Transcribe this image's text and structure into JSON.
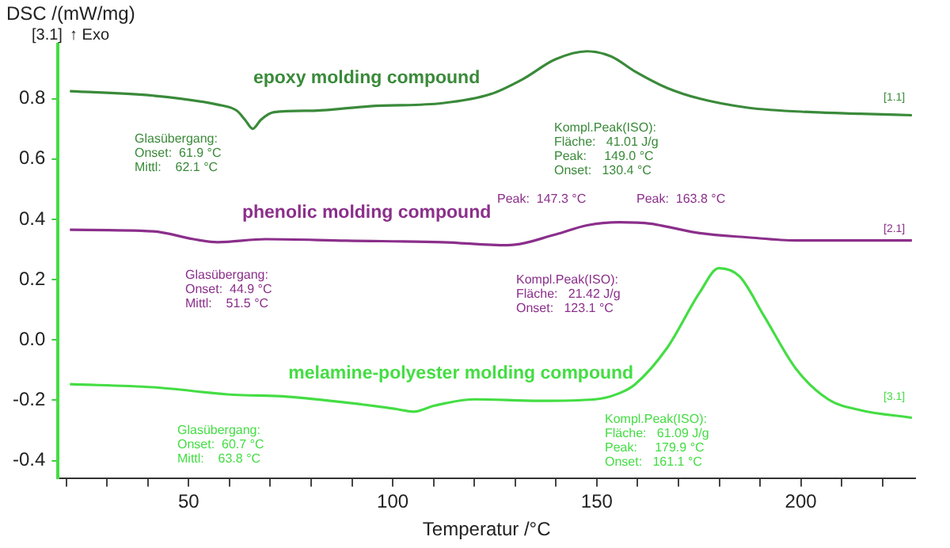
{
  "chart_data": {
    "type": "line",
    "xlabel": "Temperatur /°C",
    "ylabel": "DSC /(mW/mg)",
    "xlim": [
      18,
      228
    ],
    "ylim": [
      -0.46,
      0.98
    ],
    "xticks": [
      {
        "value": 20,
        "label": null
      },
      {
        "value": 30,
        "label": null
      },
      {
        "value": 40,
        "label": null
      },
      50,
      {
        "value": 60,
        "label": null
      },
      {
        "value": 70,
        "label": null
      },
      {
        "value": 80,
        "label": null
      },
      {
        "value": 90,
        "label": null
      },
      100,
      {
        "value": 110,
        "label": null
      },
      {
        "value": 120,
        "label": null
      },
      {
        "value": 130,
        "label": null
      },
      {
        "value": 140,
        "label": null
      },
      150,
      {
        "value": 160,
        "label": null
      },
      {
        "value": 170,
        "label": null
      },
      {
        "value": 180,
        "label": null
      },
      {
        "value": 190,
        "label": null
      },
      200,
      {
        "value": 210,
        "label": null
      },
      {
        "value": 220,
        "label": null
      }
    ],
    "yticks": [
      -0.4,
      -0.2,
      {
        "value": 0,
        "label": "0.0"
      },
      0.2,
      0.4,
      0.6,
      0.8
    ],
    "grid": false,
    "legend": false,
    "marker": "none",
    "line_style": "solid",
    "series": [
      {
        "name": "epoxy molding compound",
        "color": "#3a8a3a",
        "x": [
          20.9,
          41.3,
          57.1,
          61.8,
          63.8,
          65.7,
          67.7,
          70.9,
          80.7,
          94.5,
          112.2,
          124,
          131.9,
          139.8,
          147.6,
          153.5,
          159.4,
          167.3,
          175.2,
          187,
          202.8,
          214.6,
          227.2
        ],
        "values": [
          0.825,
          0.81,
          0.78,
          0.76,
          0.73,
          0.7,
          0.73,
          0.755,
          0.76,
          0.775,
          0.785,
          0.815,
          0.865,
          0.93,
          0.957,
          0.94,
          0.89,
          0.835,
          0.8,
          0.77,
          0.755,
          0.75,
          0.745
        ]
      },
      {
        "name": "phenolic molding compound",
        "color": "#8b2f8b",
        "x": [
          20.9,
          41.3,
          51.2,
          57.1,
          68.9,
          88.6,
          112.2,
          128,
          139.8,
          147.6,
          155.5,
          163.4,
          167.3,
          175.2,
          187,
          198.8,
          210.6,
          227.2
        ],
        "values": [
          0.365,
          0.36,
          0.334,
          0.324,
          0.334,
          0.329,
          0.324,
          0.314,
          0.349,
          0.38,
          0.39,
          0.385,
          0.375,
          0.354,
          0.34,
          0.33,
          0.33,
          0.33
        ]
      },
      {
        "name": "melamine-polyester molding compound",
        "color": "#44dd44",
        "x": [
          20.9,
          41.3,
          61,
          72.8,
          88.6,
          100.4,
          105.1,
          110.2,
          120,
          135.8,
          149.6,
          155.5,
          159.4,
          167.3,
          175.2,
          179.9,
          185,
          190.9,
          198.8,
          206.7,
          214.6,
          227.2
        ],
        "values": [
          -0.147,
          -0.157,
          -0.182,
          -0.187,
          -0.208,
          -0.228,
          -0.238,
          -0.218,
          -0.197,
          -0.202,
          -0.197,
          -0.177,
          -0.147,
          -0.025,
          0.157,
          0.238,
          0.21,
          0.081,
          -0.096,
          -0.197,
          -0.233,
          -0.258
        ]
      }
    ],
    "annotations": [
      "[3.1]",
      "↑ Exo",
      "Glasübergang:\nOnset:  61.9 °C\nMittl:    62.1 °C",
      "Kompl.Peak(ISO):\nFläche:   41.01 J/g\nPeak:     149.0 °C\nOnset:   130.4 °C",
      "[1.1]",
      "Peak:  147.3 °C",
      "Peak:  163.8 °C",
      "Glasübergang:\nOnset:  44.9 °C\nMittl:    51.5 °C",
      "Kompl.Peak(ISO):\nFläche:   21.42 J/g\nOnset:   123.1 °C",
      "[2.1]",
      "Glasübergang:\nOnset:  60.7 °C\nMittl:    63.8 °C",
      "Kompl.Peak(ISO):\nFläche:   61.09 J/g\nPeak:     179.9 °C\nOnset:   161.1 °C",
      "[3.1]"
    ]
  }
}
